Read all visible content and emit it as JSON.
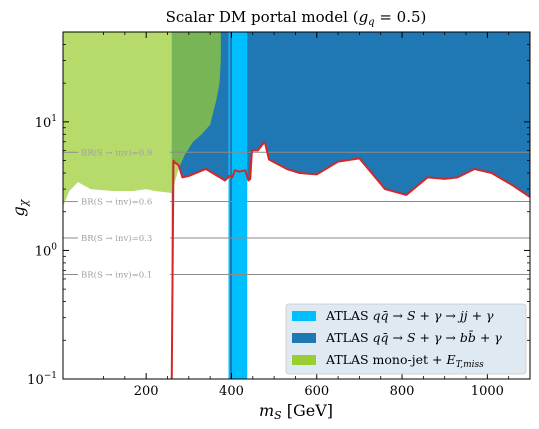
{
  "chart_data": {
    "type": "area",
    "title": "Scalar DM portal model (g_q = 0.5)",
    "title_parts": {
      "main": "Scalar DM portal model (",
      "var": "g",
      "sub": "q",
      "rest": " = 0.5)"
    },
    "xlabel": "m_S [GeV]",
    "xlabel_parts": {
      "var": "m",
      "sub": "S",
      "rest": " [GeV]"
    },
    "ylabel": "g_χ",
    "ylabel_parts": {
      "var": "g",
      "sub": "χ"
    },
    "xlim": [
      5,
      1100
    ],
    "ylim": [
      0.1,
      50
    ],
    "y_scale": "log",
    "x_ticks": [
      200,
      400,
      600,
      800,
      1000
    ],
    "x_tick_labels": [
      "200",
      "400",
      "600",
      "800",
      "1000"
    ],
    "y_ticks": [
      0.1,
      1,
      10
    ],
    "y_tick_labels": [
      "10",
      "10",
      "10"
    ],
    "y_tick_exponents": [
      "−1",
      "0",
      "1"
    ],
    "grid": false,
    "legend_position": "bottom-right",
    "colors": {
      "jj": "#00bfff",
      "bb": "#1f77b4",
      "monojet": "#9acd32",
      "curve": "#d62728",
      "br_line": "#8c8c8c",
      "legend_bg": "#dbe6f0"
    },
    "br_lines": [
      {
        "label": "BR(S → inv)=0.9",
        "g": 5.8
      },
      {
        "label": "BR(S → inv)=0.6",
        "g": 2.4
      },
      {
        "label": "BR(S → inv)=0.3",
        "g": 1.25
      },
      {
        "label": "BR(S → inv)=0.1",
        "g": 0.65
      }
    ],
    "series": [
      {
        "name": "ATLAS qq̄ → S + γ → jj + γ",
        "type": "band",
        "x_range": [
          393,
          437
        ],
        "y_range": [
          0.1,
          50
        ]
      },
      {
        "name": "ATLAS qq̄ → S + γ → bb̄ + γ",
        "type": "excluded_region",
        "boundary": [
          [
            260,
            0.1
          ],
          [
            264,
            5.0
          ],
          [
            268,
            4.8
          ],
          [
            276,
            4.6
          ],
          [
            285,
            3.7
          ],
          [
            300,
            3.8
          ],
          [
            340,
            4.3
          ],
          [
            385,
            3.5
          ],
          [
            395,
            3.8
          ],
          [
            402,
            3.7
          ],
          [
            408,
            4.2
          ],
          [
            418,
            4.1
          ],
          [
            432,
            4.2
          ],
          [
            440,
            3.5
          ],
          [
            444,
            3.6
          ],
          [
            448,
            6.0
          ],
          [
            462,
            6.0
          ],
          [
            478,
            7.0
          ],
          [
            488,
            5.1
          ],
          [
            530,
            4.3
          ],
          [
            560,
            4.0
          ],
          [
            600,
            3.9
          ],
          [
            650,
            4.9
          ],
          [
            700,
            5.2
          ],
          [
            760,
            3.0
          ],
          [
            810,
            2.7
          ],
          [
            860,
            3.7
          ],
          [
            900,
            3.6
          ],
          [
            930,
            3.7
          ],
          [
            970,
            4.3
          ],
          [
            1010,
            4.0
          ],
          [
            1060,
            3.2
          ],
          [
            1100,
            2.6
          ]
        ]
      },
      {
        "name": "ATLAS mono-jet + E_T,miss",
        "type": "excluded_region",
        "boundary": [
          [
            5,
            2.2
          ],
          [
            20,
            2.9
          ],
          [
            40,
            3.4
          ],
          [
            70,
            3.0
          ],
          [
            120,
            2.9
          ],
          [
            170,
            2.9
          ],
          [
            200,
            3.0
          ],
          [
            220,
            2.9
          ],
          [
            260,
            2.8
          ],
          [
            275,
            4.2
          ],
          [
            290,
            5.5
          ],
          [
            310,
            7.0
          ],
          [
            330,
            8.0
          ],
          [
            350,
            9.5
          ],
          [
            365,
            15
          ],
          [
            372,
            20
          ],
          [
            375,
            30
          ],
          [
            375,
            50
          ]
        ]
      }
    ],
    "legend": [
      {
        "key": "jj",
        "prefix": "ATLAS ",
        "formula": "qq̄ → S + γ → jj + γ"
      },
      {
        "key": "bb",
        "prefix": "ATLAS ",
        "formula": "qq̄ → S + γ → bb̄ + γ"
      },
      {
        "key": "monojet",
        "prefix": "ATLAS mono-jet + ",
        "formula": "E",
        "sub": "T,miss"
      }
    ]
  }
}
